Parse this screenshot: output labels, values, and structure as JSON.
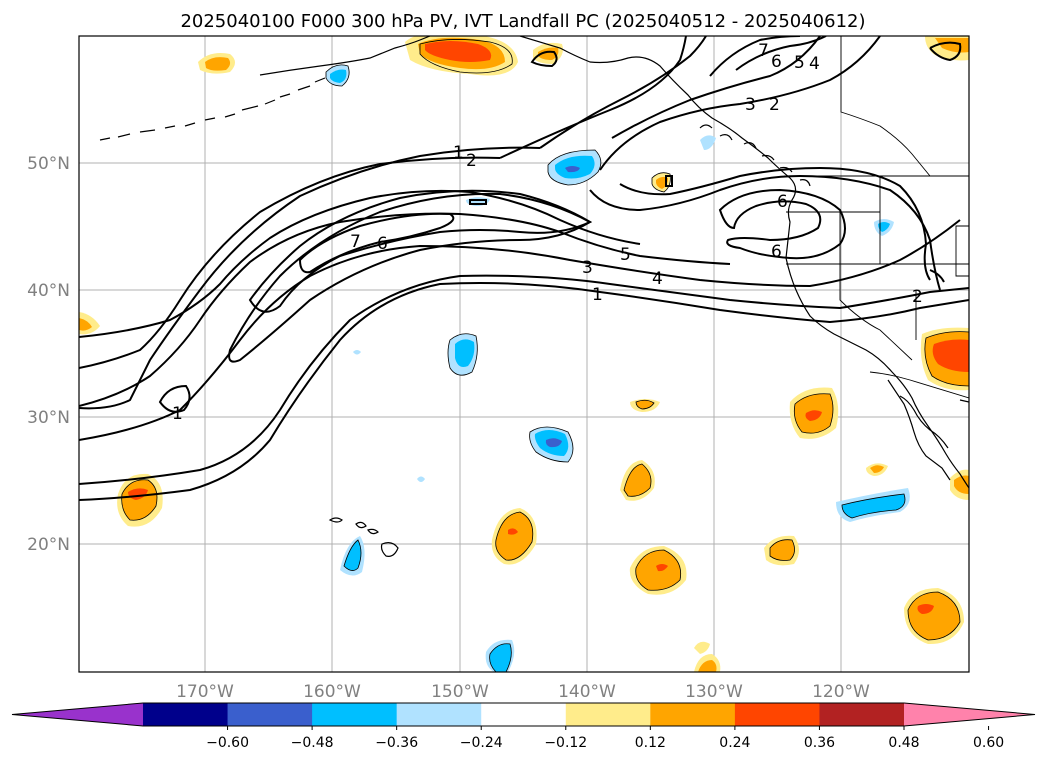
{
  "title": "2025040100 F000 300 hPa PV, IVT Landfall PC (2025040512 - 2025040612)",
  "lat_labels": [
    "50°N",
    "40°N",
    "30°N",
    "20°N"
  ],
  "lon_labels": [
    "170°W",
    "160°W",
    "150°W",
    "140°W",
    "130°W",
    "120°W"
  ],
  "colorbar": {
    "ticks": [
      "−0.60",
      "−0.48",
      "−0.36",
      "−0.24",
      "−0.12",
      "0.12",
      "0.24",
      "0.36",
      "0.48",
      "0.60"
    ],
    "colors": [
      "#9932cc",
      "#00008b",
      "#3a5fcd",
      "#00bfff",
      "#b0e2ff",
      "#ffffff",
      "#ffec8b",
      "#ffa500",
      "#ff4500",
      "#b22222",
      "#ff82ab"
    ]
  },
  "contour_labels": [
    "1",
    "2",
    "3",
    "4",
    "5",
    "6",
    "7",
    "1",
    "2",
    "3",
    "4",
    "5",
    "6",
    "7",
    "1",
    "2",
    "6",
    "6"
  ]
}
